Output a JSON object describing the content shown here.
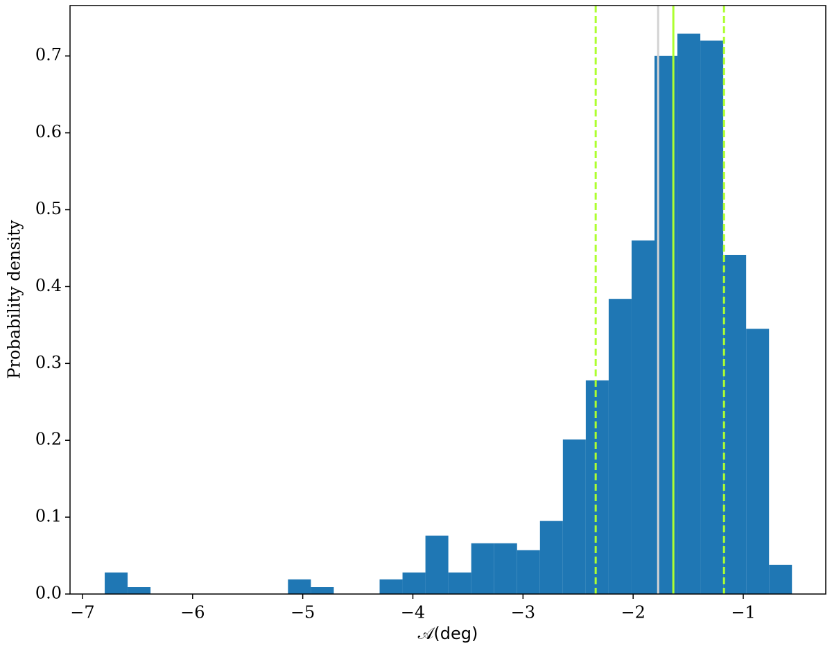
{
  "chart_data": {
    "type": "histogram",
    "xlabel": "𝒜(deg)",
    "ylabel": "Probability density",
    "bins": [
      -6.798,
      -6.59,
      -6.382,
      -6.174,
      -5.966,
      -5.758,
      -5.55,
      -5.342,
      -5.134,
      -4.926,
      -4.718,
      -4.51,
      -4.302,
      -4.094,
      -3.886,
      -3.678,
      -3.47,
      -3.262,
      -3.054,
      -2.846,
      -2.638,
      -2.43,
      -2.222,
      -2.014,
      -1.806,
      -1.598,
      -1.39,
      -1.182,
      -0.974,
      -0.766,
      -0.558
    ],
    "values": [
      0.028,
      0.009,
      0,
      0,
      0,
      0,
      0,
      0,
      0.019,
      0.009,
      0,
      0,
      0.019,
      0.028,
      0.076,
      0.028,
      0.066,
      0.066,
      0.057,
      0.095,
      0.201,
      0.278,
      0.384,
      0.46,
      0.7,
      0.729,
      0.72,
      0.441,
      0.345,
      0.038
    ],
    "color": "#1f77b4",
    "vlines": [
      {
        "value": -2.34,
        "color": "#adff2f",
        "style": "dashed"
      },
      {
        "value": -1.773,
        "color": "#d3d3d3",
        "style": "solid"
      },
      {
        "value": -1.635,
        "color": "#adff2f",
        "style": "solid"
      },
      {
        "value": -1.175,
        "color": "#adff2f",
        "style": "dashed"
      }
    ],
    "xlim": [
      -7.113,
      -0.251
    ],
    "ylim": [
      0,
      0.7656
    ],
    "xticks": [
      {
        "value": -7,
        "label": "−7"
      },
      {
        "value": -6,
        "label": "−6"
      },
      {
        "value": -5,
        "label": "−5"
      },
      {
        "value": -4,
        "label": "−4"
      },
      {
        "value": -3,
        "label": "−3"
      },
      {
        "value": -2,
        "label": "−2"
      },
      {
        "value": -1,
        "label": "−1"
      }
    ],
    "yticks": [
      {
        "value": 0,
        "label": "0.0"
      },
      0.1,
      0.2,
      0.3,
      0.4,
      0.5,
      0.6,
      0.7
    ]
  }
}
